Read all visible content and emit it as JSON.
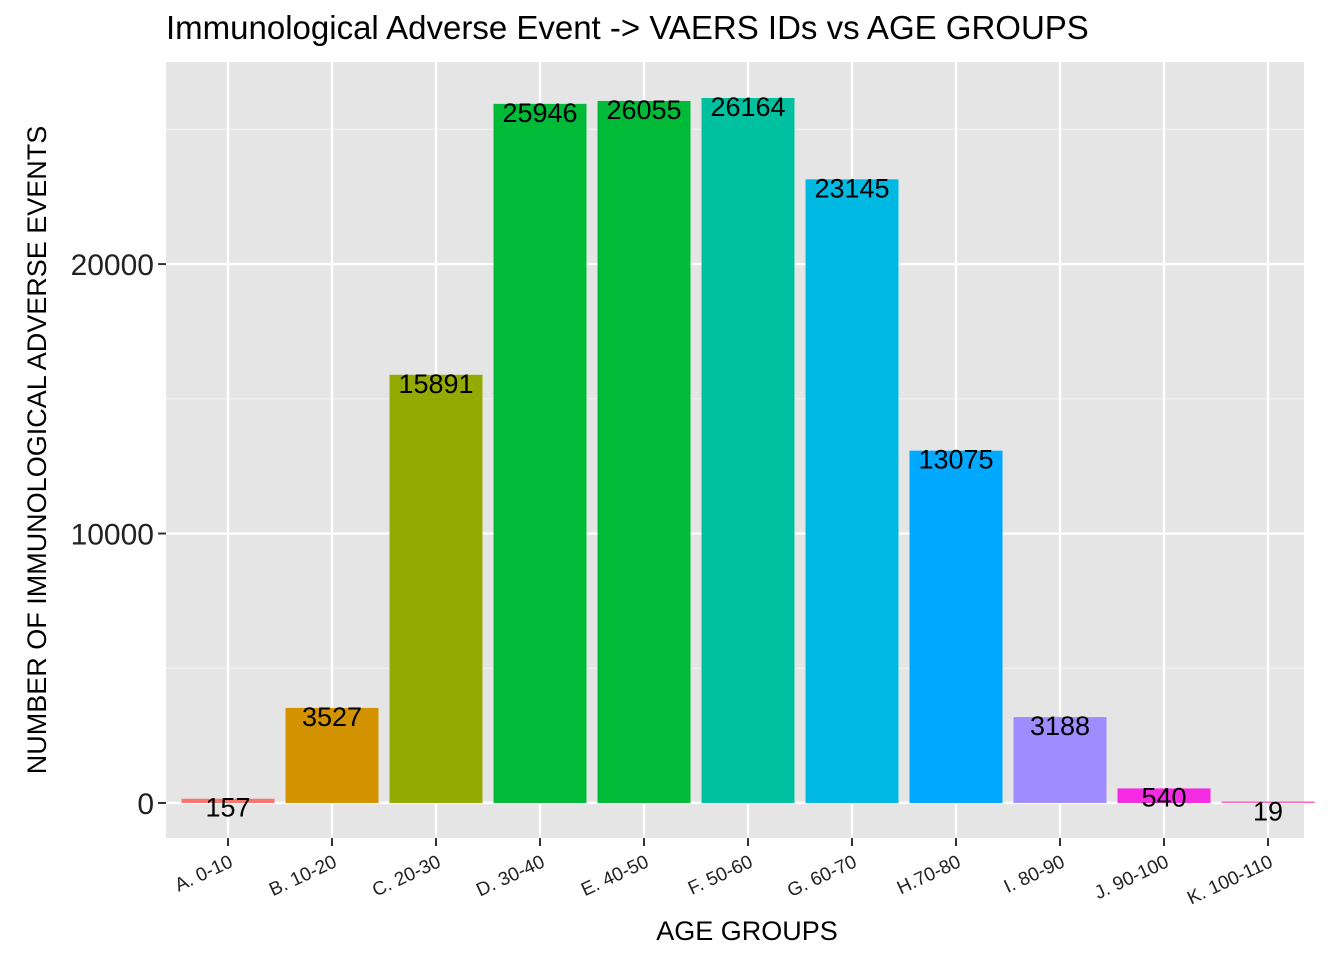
{
  "chart_data": {
    "type": "bar",
    "title": "Immunological Adverse Event -> VAERS IDs vs AGE GROUPS",
    "xlabel": "AGE GROUPS",
    "ylabel": "NUMBER OF IMMUNOLOGICAL ADVERSE EVENTS",
    "categories": [
      "A. 0-10",
      "B. 10-20",
      "C. 20-30",
      "D. 30-40",
      "E. 40-50",
      "F. 50-60",
      "G. 60-70",
      "H.70-80",
      "I. 80-90",
      "J. 90-100",
      "K. 100-110"
    ],
    "values": [
      157,
      3527,
      15891,
      25946,
      26055,
      26164,
      23145,
      13075,
      3188,
      540,
      19
    ],
    "colors": [
      "#F8766D",
      "#D39200",
      "#93AA00",
      "#00BA38",
      "#00BA38",
      "#00C19F",
      "#00B9E3",
      "#00A9FF",
      "#9F8CFF",
      "#F52AE3",
      "#FF61C3"
    ],
    "yticks": [
      0,
      10000,
      20000
    ],
    "ytick_labels": [
      "0",
      "10000",
      "20000"
    ],
    "ylim": [
      -1300,
      27500
    ],
    "grid": true,
    "panel_background": "#E5E5E5",
    "legend": "none"
  }
}
